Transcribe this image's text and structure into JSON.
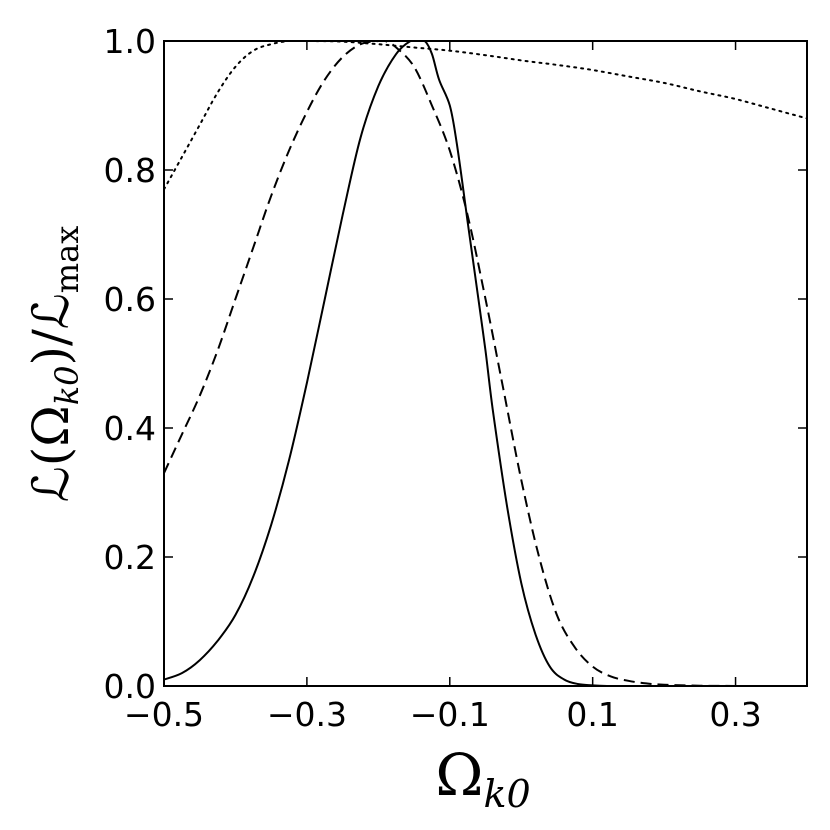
{
  "chart_data": {
    "type": "line",
    "title": "",
    "xlabel": {
      "base": "Ω",
      "sub": "k0"
    },
    "ylabel": {
      "lhs": "ℒ(Ω",
      "lhs_sub": "k0",
      "mid": ")/ℒ",
      "rhs_sub": "max"
    },
    "xlim": [
      -0.5,
      0.4
    ],
    "ylim": [
      0.0,
      1.0
    ],
    "xticks": [
      -0.5,
      -0.3,
      -0.1,
      0.1,
      0.3
    ],
    "xtick_labels": [
      "−0.5",
      "−0.3",
      "−0.1",
      "0.1",
      "0.3"
    ],
    "yticks": [
      0.0,
      0.2,
      0.4,
      0.6,
      0.8,
      1.0
    ],
    "ytick_labels": [
      "0.0",
      "0.2",
      "0.4",
      "0.6",
      "0.8",
      "1.0"
    ],
    "grid": false,
    "legend": "none",
    "series": [
      {
        "style": "solid",
        "x": [
          -0.5,
          -0.475,
          -0.45,
          -0.425,
          -0.4,
          -0.375,
          -0.35,
          -0.325,
          -0.3,
          -0.275,
          -0.25,
          -0.225,
          -0.2,
          -0.175,
          -0.155,
          -0.145,
          -0.135,
          -0.125,
          -0.115,
          -0.1,
          -0.09,
          -0.075,
          -0.06,
          -0.05,
          -0.04,
          -0.02,
          0.0,
          0.02,
          0.04,
          0.06,
          0.08,
          0.1,
          0.12,
          0.14,
          0.16,
          0.18,
          0.2,
          0.25
        ],
        "y": [
          0.01,
          0.02,
          0.04,
          0.07,
          0.11,
          0.17,
          0.25,
          0.35,
          0.47,
          0.6,
          0.73,
          0.85,
          0.93,
          0.98,
          1.0,
          1.0,
          1.0,
          0.98,
          0.94,
          0.9,
          0.84,
          0.72,
          0.6,
          0.52,
          0.43,
          0.28,
          0.16,
          0.08,
          0.03,
          0.01,
          0.003,
          0.001,
          0.0,
          0.0,
          0.0,
          0.0,
          0.0,
          0.0
        ]
      },
      {
        "style": "dashed",
        "x": [
          -0.5,
          -0.475,
          -0.45,
          -0.425,
          -0.4,
          -0.375,
          -0.35,
          -0.325,
          -0.3,
          -0.275,
          -0.25,
          -0.225,
          -0.2,
          -0.19,
          -0.175,
          -0.15,
          -0.125,
          -0.1,
          -0.075,
          -0.05,
          -0.025,
          0.0,
          0.025,
          0.05,
          0.075,
          0.1,
          0.125,
          0.15,
          0.175,
          0.2,
          0.25,
          0.3,
          0.35,
          0.4
        ],
        "y": [
          0.33,
          0.39,
          0.45,
          0.52,
          0.6,
          0.68,
          0.76,
          0.83,
          0.89,
          0.94,
          0.975,
          0.995,
          1.0,
          1.0,
          0.99,
          0.96,
          0.9,
          0.83,
          0.73,
          0.6,
          0.46,
          0.32,
          0.2,
          0.11,
          0.06,
          0.03,
          0.015,
          0.008,
          0.004,
          0.002,
          0.0005,
          0.0,
          0.0,
          0.0
        ]
      },
      {
        "style": "dotted",
        "x": [
          -0.5,
          -0.475,
          -0.45,
          -0.425,
          -0.4,
          -0.375,
          -0.35,
          -0.325,
          -0.3,
          -0.25,
          -0.2,
          -0.15,
          -0.1,
          -0.05,
          0.0,
          0.05,
          0.1,
          0.15,
          0.2,
          0.25,
          0.3,
          0.35,
          0.4
        ],
        "y": [
          0.77,
          0.82,
          0.87,
          0.92,
          0.96,
          0.985,
          0.995,
          1.0,
          1.0,
          0.999,
          0.995,
          0.99,
          0.985,
          0.978,
          0.97,
          0.963,
          0.955,
          0.945,
          0.935,
          0.922,
          0.91,
          0.895,
          0.88
        ]
      }
    ]
  }
}
